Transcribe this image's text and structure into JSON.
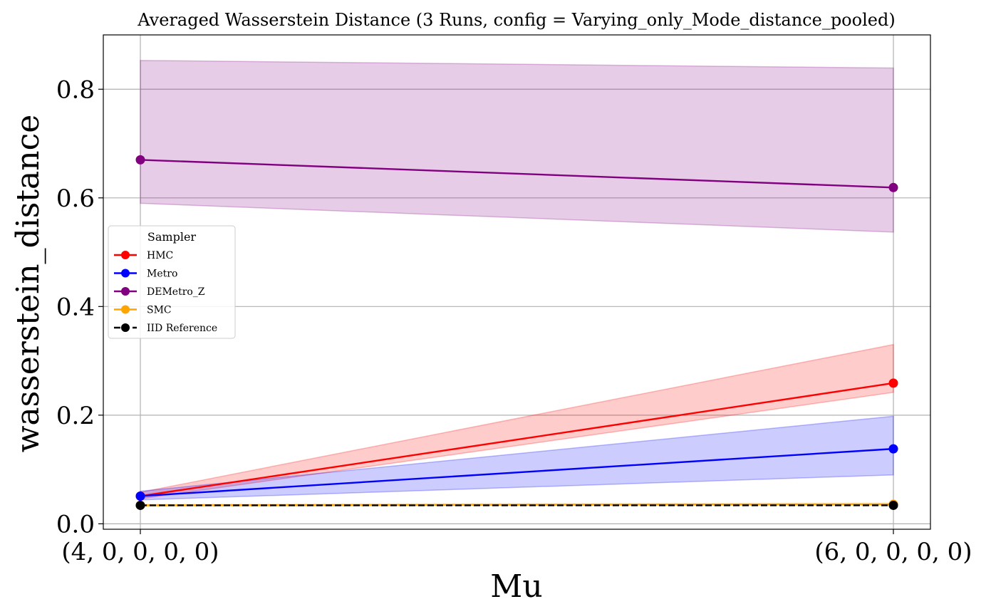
{
  "chart_data": {
    "type": "line",
    "title": "Averaged Wasserstein Distance (3 Runs, config = Varying_only_Mode_distance_pooled)",
    "xlabel": "Mu",
    "ylabel": "wasserstein_distance",
    "categories": [
      "(4, 0, 0, 0, 0)",
      "(6, 0, 0, 0, 0)"
    ],
    "ylim": [
      -0.01,
      0.9
    ],
    "yticks": [
      0.0,
      0.2,
      0.4,
      0.6,
      0.8
    ],
    "ytick_labels": [
      "0.0",
      "0.2",
      "0.4",
      "0.6",
      "0.8"
    ],
    "grid": true,
    "legend": {
      "title": "Sampler",
      "placement": "center-left"
    },
    "series": [
      {
        "name": "HMC",
        "values": [
          0.051,
          0.259
        ],
        "band_low": [
          0.046,
          0.242
        ],
        "band_high": [
          0.058,
          0.33
        ],
        "color": "#ff0000",
        "band_color": "#ff0000",
        "dashed": false
      },
      {
        "name": "Metro",
        "values": [
          0.051,
          0.138
        ],
        "band_low": [
          0.044,
          0.09
        ],
        "band_high": [
          0.06,
          0.198
        ],
        "color": "#0000ff",
        "band_color": "#0000ff",
        "dashed": false
      },
      {
        "name": "DEMetro_Z",
        "values": [
          0.67,
          0.619
        ],
        "band_low": [
          0.59,
          0.537
        ],
        "band_high": [
          0.853,
          0.839
        ],
        "color": "#800080",
        "band_color": "#800080",
        "dashed": false
      },
      {
        "name": "SMC",
        "values": [
          0.034,
          0.036
        ],
        "band_low": [
          0.033,
          0.034
        ],
        "band_high": [
          0.036,
          0.038
        ],
        "color": "#ffa500",
        "band_color": "#ffa500",
        "dashed": false
      },
      {
        "name": "IID Reference",
        "values": [
          0.034,
          0.034
        ],
        "color": "#000000",
        "dashed": true
      }
    ]
  }
}
